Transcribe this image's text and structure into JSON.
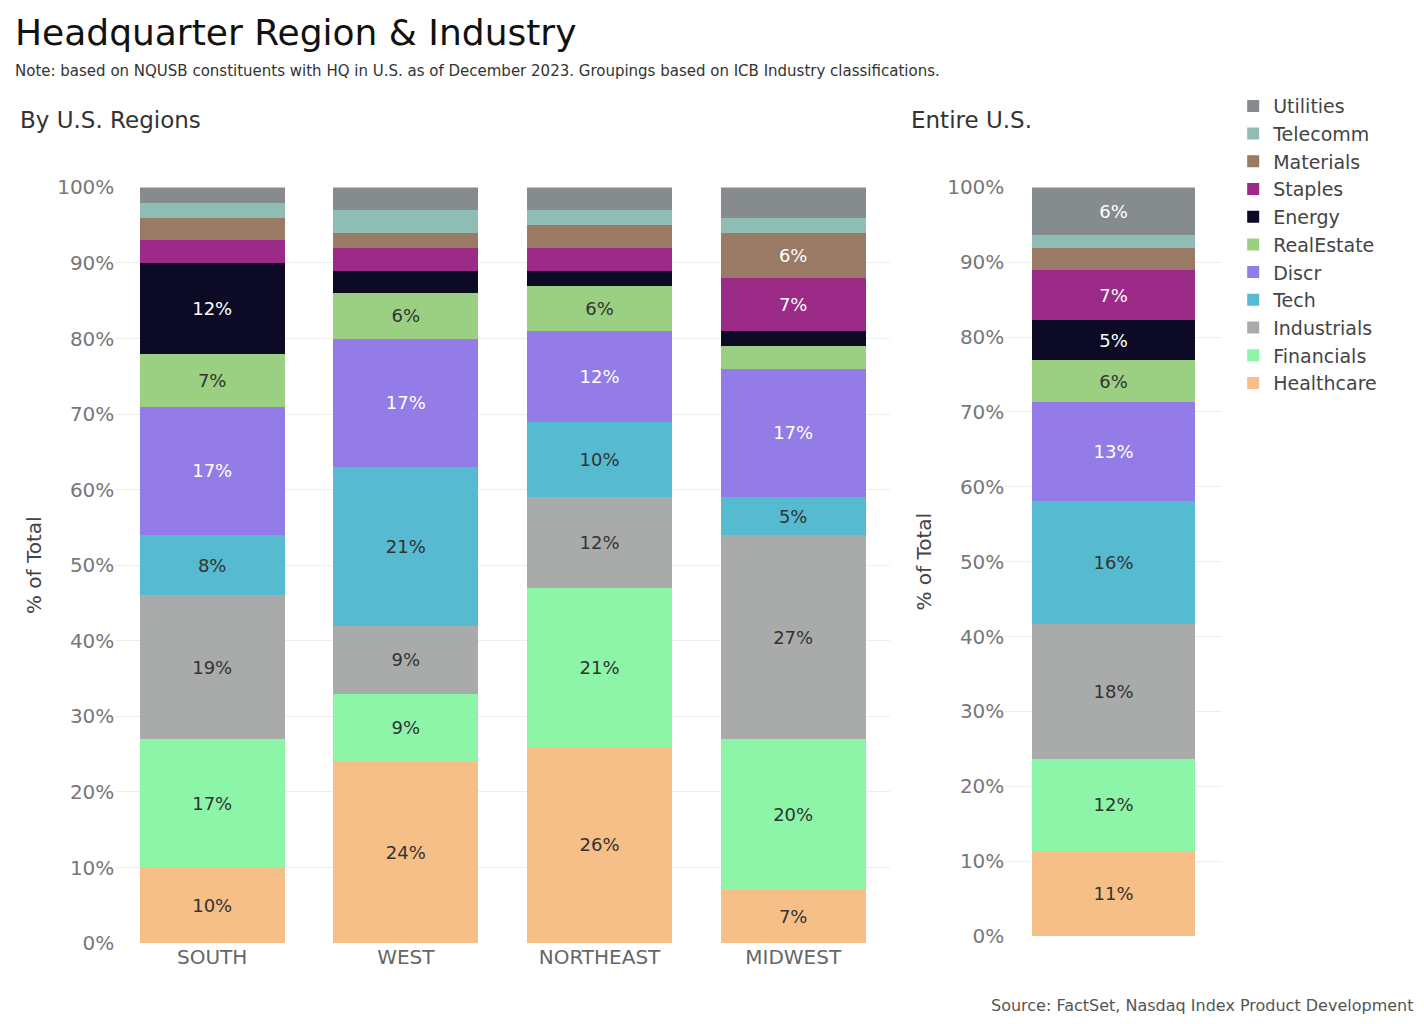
{
  "title": "Headquarter Region & Industry",
  "subtitle": "Note: based on NQUSB constituents with HQ in U.S. as of December 2023. Groupings based on ICB Industry classifications.",
  "source": "Source: FactSet, Nasdaq Index Product Development",
  "chart_data": [
    {
      "type": "bar",
      "title": "By U.S. Regions",
      "y_label": "% of Total",
      "stacked": true,
      "grid": true,
      "data_labels": true,
      "legend": "right",
      "categories": [
        "SOUTH",
        "WEST",
        "NORTHEAST",
        "MIDWEST"
      ],
      "ylim": [
        0,
        100
      ],
      "yticks": [
        {
          "value": 0,
          "label": "0%"
        },
        {
          "value": 10,
          "label": "10%"
        },
        {
          "value": 20,
          "label": "20%"
        },
        {
          "value": 30,
          "label": "30%"
        },
        {
          "value": 40,
          "label": "40%"
        },
        {
          "value": 50,
          "label": "50%"
        },
        {
          "value": 60,
          "label": "60%"
        },
        {
          "value": 70,
          "label": "70%"
        },
        {
          "value": 80,
          "label": "80%"
        },
        {
          "value": 90,
          "label": "90%"
        },
        {
          "value": 100,
          "label": "100%"
        }
      ],
      "series": [
        {
          "name": "Healthcare",
          "color": "#f5bf87",
          "values": [
            10,
            24,
            26,
            7
          ],
          "value_labels": [
            "10%",
            "24%",
            "26%",
            "7%"
          ]
        },
        {
          "name": "Financials",
          "color": "#8cf5a8",
          "values": [
            17,
            9,
            21,
            20
          ],
          "value_labels": [
            "17%",
            "9%",
            "21%",
            "20%"
          ]
        },
        {
          "name": "Industrials",
          "color": "#a9abab",
          "values": [
            19,
            9,
            12,
            27
          ],
          "value_labels": [
            "19%",
            "9%",
            "12%",
            "27%"
          ]
        },
        {
          "name": "Tech",
          "color": "#56bad1",
          "values": [
            8,
            21,
            10,
            5
          ],
          "value_labels": [
            "8%",
            "21%",
            "10%",
            "5%"
          ]
        },
        {
          "name": "Discr",
          "color": "#937ce8",
          "values": [
            17,
            17,
            12,
            17
          ],
          "value_labels": [
            "17%",
            "17%",
            "12%",
            "17%"
          ]
        },
        {
          "name": "RealEstate",
          "color": "#9bcf82",
          "values": [
            7,
            6,
            6,
            3
          ],
          "value_labels": [
            "7%",
            "6%",
            "6%",
            null
          ]
        },
        {
          "name": "Energy",
          "color": "#0c0a24",
          "values": [
            12,
            3,
            2,
            2
          ],
          "value_labels": [
            "12%",
            null,
            null,
            null
          ]
        },
        {
          "name": "Staples",
          "color": "#9c2a87",
          "values": [
            3,
            3,
            3,
            7
          ],
          "value_labels": [
            null,
            null,
            null,
            "7%"
          ]
        },
        {
          "name": "Materials",
          "color": "#9a7a65",
          "values": [
            3,
            2,
            3,
            6
          ],
          "value_labels": [
            null,
            null,
            null,
            "6%"
          ]
        },
        {
          "name": "Telecomm",
          "color": "#8fbcb5",
          "values": [
            2,
            3,
            2,
            2
          ],
          "value_labels": [
            null,
            null,
            null,
            null
          ]
        },
        {
          "name": "Utilities",
          "color": "#868b8e",
          "values": [
            2,
            3,
            3,
            4
          ],
          "value_labels": [
            null,
            null,
            null,
            null
          ]
        }
      ]
    },
    {
      "type": "bar",
      "title": "Entire U.S.",
      "y_label": "% of Total",
      "stacked": true,
      "grid": true,
      "data_labels": true,
      "categories": [
        null
      ],
      "ylim": [
        0,
        100
      ],
      "yticks": [
        {
          "value": 0,
          "label": "0%"
        },
        {
          "value": 10,
          "label": "10%"
        },
        {
          "value": 20,
          "label": "20%"
        },
        {
          "value": 30,
          "label": "30%"
        },
        {
          "value": 40,
          "label": "40%"
        },
        {
          "value": 50,
          "label": "50%"
        },
        {
          "value": 60,
          "label": "60%"
        },
        {
          "value": 70,
          "label": "70%"
        },
        {
          "value": 80,
          "label": "80%"
        },
        {
          "value": 90,
          "label": "90%"
        },
        {
          "value": 100,
          "label": "100%"
        }
      ],
      "series": [
        {
          "name": "Healthcare",
          "color": "#f5bf87",
          "values": [
            11.3
          ],
          "value_labels": [
            "11%"
          ]
        },
        {
          "name": "Financials",
          "color": "#8cf5a8",
          "values": [
            12.4
          ],
          "value_labels": [
            "12%"
          ]
        },
        {
          "name": "Industrials",
          "color": "#a9abab",
          "values": [
            18
          ],
          "value_labels": [
            "18%"
          ]
        },
        {
          "name": "Tech",
          "color": "#56bad1",
          "values": [
            16.4
          ],
          "value_labels": [
            "16%"
          ]
        },
        {
          "name": "Discr",
          "color": "#937ce8",
          "values": [
            13.2
          ],
          "value_labels": [
            "13%"
          ]
        },
        {
          "name": "RealEstate",
          "color": "#9bcf82",
          "values": [
            5.6
          ],
          "value_labels": [
            "6%"
          ]
        },
        {
          "name": "Energy",
          "color": "#0c0a24",
          "values": [
            5.4
          ],
          "value_labels": [
            "5%"
          ]
        },
        {
          "name": "Staples",
          "color": "#9c2a87",
          "values": [
            6.6
          ],
          "value_labels": [
            "7%"
          ]
        },
        {
          "name": "Materials",
          "color": "#9a7a65",
          "values": [
            3
          ],
          "value_labels": [
            null
          ]
        },
        {
          "name": "Telecomm",
          "color": "#8fbcb5",
          "values": [
            1.7
          ],
          "value_labels": [
            null
          ]
        },
        {
          "name": "Utilities",
          "color": "#868b8e",
          "values": [
            6.4
          ],
          "value_labels": [
            "6%"
          ]
        }
      ]
    }
  ]
}
